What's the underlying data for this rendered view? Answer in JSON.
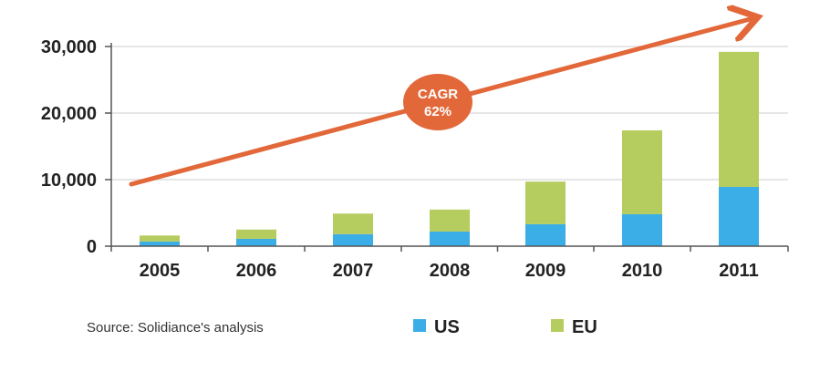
{
  "colors": {
    "us": "#3BAEE8",
    "eu": "#B5CC5E",
    "arrow": "#E2683A",
    "grid": "#DDDDDD",
    "axis": "#555555"
  },
  "annotation": {
    "line1": "CAGR",
    "line2": "62%"
  },
  "source": "Source: Solidiance's analysis",
  "chart_data": {
    "type": "bar",
    "stacked": true,
    "categories": [
      "2005",
      "2006",
      "2007",
      "2008",
      "2009",
      "2010",
      "2011"
    ],
    "series": [
      {
        "name": "US",
        "values": [
          700,
          1100,
          1800,
          2200,
          3300,
          4800,
          8900
        ]
      },
      {
        "name": "EU",
        "values": [
          900,
          1400,
          3100,
          3300,
          6400,
          12600,
          20300
        ]
      }
    ],
    "ylim": [
      0,
      30000
    ],
    "yticks": [
      0,
      10000,
      20000,
      30000
    ],
    "ytick_labels": [
      "0",
      "10,000",
      "20,000",
      "30,000"
    ],
    "grid": true,
    "legend": "bottom",
    "title": "",
    "xlabel": "",
    "ylabel": ""
  }
}
